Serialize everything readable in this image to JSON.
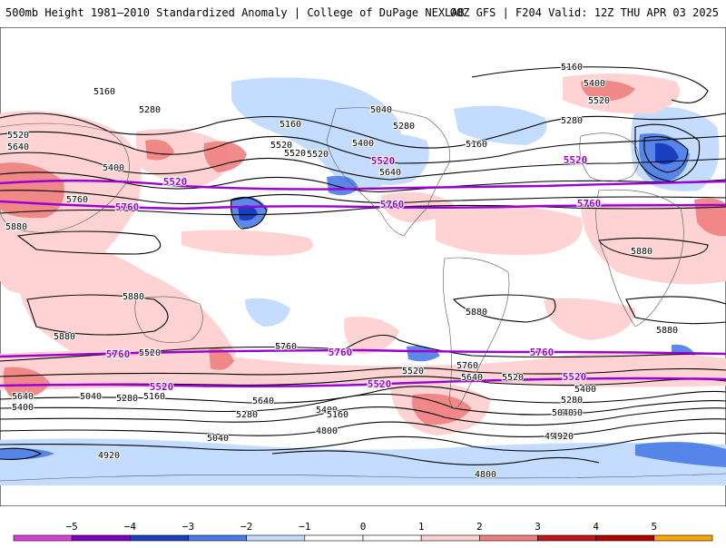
{
  "header": {
    "title": "500mb Height 1981–2010 Standardized Anomaly | College of DuPage NEXLAB",
    "valid": "00Z GFS | F204 Valid: 12Z THU APR 03 2025"
  },
  "colors": {
    "neg5": "#d642d6",
    "neg4": "#8000c0",
    "neg3": "#1a3fbf",
    "neg2": "#4a7be8",
    "neg1": "#c4dcff",
    "zero": "#ffffff",
    "pos1": "#ffd3d3",
    "pos2": "#f08080",
    "pos3": "#c01818",
    "pos4": "#b00000",
    "pos5": "#ffa500",
    "contour": "#000000",
    "highlight": "#9b00d4"
  },
  "legend": {
    "ticks": [
      "−5",
      "−4",
      "−3",
      "−2",
      "−1",
      "0",
      "1",
      "2",
      "3",
      "4",
      "5"
    ]
  },
  "contour_labels": {
    "black": [
      "5160",
      "5280",
      "5520",
      "5640",
      "5400",
      "5160",
      "5520",
      "5040",
      "5280",
      "5400",
      "5520",
      "5160",
      "5160",
      "5400",
      "5280",
      "5520",
      "5640",
      "5520",
      "5760",
      "5880",
      "5880",
      "5880",
      "5880",
      "5880",
      "5880",
      "5760",
      "5520",
      "5640",
      "5400",
      "5040",
      "5280",
      "5160",
      "5640",
      "5280",
      "5400",
      "5040",
      "4920",
      "4920",
      "5160",
      "4800",
      "5520",
      "5760",
      "5640",
      "5520",
      "5400",
      "5280",
      "5160",
      "5040",
      "4920",
      "4800"
    ],
    "purple": [
      "5520",
      "5760",
      "5520",
      "5760",
      "5520",
      "5760",
      "5760",
      "5760",
      "5760",
      "5520",
      "5520",
      "5520"
    ]
  },
  "anomaly_areas": [
    "neg1",
    "neg2",
    "neg3",
    "pos1",
    "pos2"
  ]
}
